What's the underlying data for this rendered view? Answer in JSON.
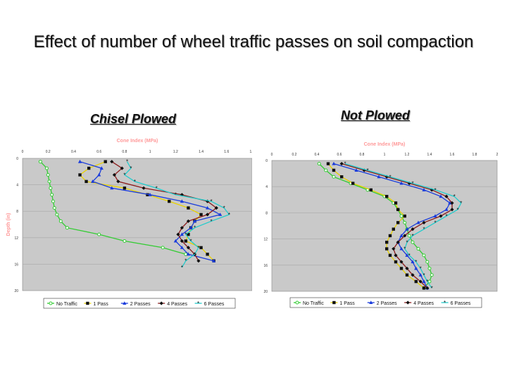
{
  "title": "Effect of number of wheel traffic passes on soil compaction",
  "subtitles": {
    "left": "Chisel Plowed",
    "right": "Not Plowed"
  },
  "chart_data": [
    {
      "type": "line",
      "x_label": "Cone Index (MPa)",
      "y_label": "Depth (in)",
      "xlim": [
        0,
        1.8
      ],
      "ylim": [
        0,
        20
      ],
      "y_inverted": true,
      "x_ticks": [
        "0",
        "0.2",
        "0.4",
        "0.6",
        "0.8",
        "1",
        "1.2",
        "1.4",
        "1.6",
        "1.8"
      ],
      "y_ticks": [
        "0",
        "4",
        "8",
        "12",
        "16",
        "20"
      ],
      "grid": true,
      "legend_position": "bottom",
      "series": [
        {
          "name": "No Traffic",
          "color": "#33cc33",
          "marker": "circle-open",
          "x": [
            0.14,
            0.19,
            0.2,
            0.21,
            0.22,
            0.23,
            0.24,
            0.25,
            0.27,
            0.3,
            0.35,
            0.6,
            0.8,
            1.1,
            1.28
          ],
          "y": [
            0.5,
            1.5,
            2.5,
            3.5,
            4.5,
            5.5,
            6.5,
            7.5,
            8.5,
            9.5,
            10.5,
            11.5,
            12.5,
            13.5,
            14.5
          ]
        },
        {
          "name": "1 Pass",
          "color": "#e8d200",
          "marker": "square",
          "x": [
            0.65,
            0.52,
            0.45,
            0.5,
            0.8,
            0.98,
            1.15,
            1.3,
            1.4,
            1.35,
            1.32,
            1.3,
            1.28,
            1.4,
            1.45,
            1.5
          ],
          "y": [
            0.5,
            1.5,
            2.5,
            3.5,
            4.5,
            5.5,
            6.5,
            7.5,
            8.5,
            9.5,
            10.5,
            11.5,
            12.5,
            13.5,
            14.5,
            15.5
          ]
        },
        {
          "name": "2 Passes",
          "color": "#1a3cdc",
          "marker": "triangle",
          "x": [
            0.45,
            0.62,
            0.6,
            0.55,
            0.7,
            1.0,
            1.25,
            1.45,
            1.55,
            1.35,
            1.32,
            1.25,
            1.2,
            1.25,
            1.3,
            1.5
          ],
          "y": [
            0.5,
            1.5,
            2.5,
            3.5,
            4.5,
            5.5,
            6.5,
            7.5,
            8.5,
            9.5,
            10.5,
            11.5,
            12.5,
            13.5,
            14.5,
            15.5
          ]
        },
        {
          "name": "4 Passes",
          "color": "#8b1a1a",
          "marker": "diamond",
          "x": [
            0.7,
            0.78,
            0.72,
            0.75,
            0.95,
            1.25,
            1.45,
            1.52,
            1.45,
            1.3,
            1.25,
            1.22,
            1.25,
            1.3,
            1.35,
            1.38
          ],
          "y": [
            0.5,
            1.5,
            2.5,
            3.5,
            4.5,
            5.5,
            6.5,
            7.5,
            8.5,
            9.5,
            10.5,
            11.5,
            12.5,
            13.5,
            14.5,
            15.5
          ]
        },
        {
          "name": "6 Passes",
          "color": "#22cccc",
          "marker": "star",
          "x": [
            0.82,
            0.85,
            0.8,
            0.88,
            1.05,
            1.2,
            1.48,
            1.58,
            1.62,
            1.48,
            1.35,
            1.28,
            1.32,
            1.38,
            1.35,
            1.28,
            1.25
          ],
          "y": [
            0.5,
            1.5,
            2.5,
            3.5,
            4.5,
            5.5,
            6.5,
            7.5,
            8.5,
            9.5,
            10.5,
            11.5,
            12.5,
            13.5,
            14.5,
            15.5,
            16.5
          ]
        }
      ]
    },
    {
      "type": "line",
      "x_label": "Cone Index (MPa)",
      "xlim": [
        0,
        2
      ],
      "ylim": [
        0,
        20
      ],
      "y_inverted": true,
      "x_ticks": [
        "0",
        "0.2",
        "0.4",
        "0.6",
        "0.8",
        "1",
        "1.2",
        "1.4",
        "1.6",
        "1.8",
        "2"
      ],
      "y_ticks": [
        "0",
        "4",
        "8",
        "12",
        "16",
        "20"
      ],
      "grid": true,
      "legend_position": "bottom",
      "series": [
        {
          "name": "No Traffic",
          "color": "#33cc33",
          "marker": "circle-open",
          "x": [
            0.42,
            0.48,
            0.55,
            0.7,
            0.85,
            1.0,
            1.08,
            1.12,
            1.15,
            1.18,
            1.2,
            1.22,
            1.25,
            1.3,
            1.35,
            1.38,
            1.4,
            1.42,
            1.4,
            1.35
          ],
          "y": [
            0.5,
            1.5,
            2.5,
            3.5,
            4.5,
            5.5,
            6.5,
            7.5,
            8.5,
            9.5,
            10.5,
            11.5,
            12.5,
            13.5,
            14.5,
            15.5,
            16.5,
            17.5,
            18.5,
            19.5
          ]
        },
        {
          "name": "1 Pass",
          "color": "#e8d200",
          "marker": "square",
          "x": [
            0.5,
            0.55,
            0.62,
            0.72,
            0.88,
            1.02,
            1.1,
            1.12,
            1.18,
            1.12,
            1.08,
            1.05,
            1.02,
            1.02,
            1.05,
            1.1,
            1.15,
            1.2,
            1.28,
            1.35
          ],
          "y": [
            0.5,
            1.5,
            2.5,
            3.5,
            4.5,
            5.5,
            6.5,
            7.5,
            8.5,
            9.5,
            10.5,
            11.5,
            12.5,
            13.5,
            14.5,
            15.5,
            16.5,
            17.5,
            18.5,
            19.5
          ]
        },
        {
          "name": "2 Passes",
          "color": "#1a3cdc",
          "marker": "triangle",
          "x": [
            0.55,
            0.75,
            0.95,
            1.15,
            1.35,
            1.5,
            1.58,
            1.55,
            1.45,
            1.3,
            1.2,
            1.15,
            1.12,
            1.15,
            1.2,
            1.25,
            1.28,
            1.32,
            1.35,
            1.38
          ],
          "y": [
            0.5,
            1.5,
            2.5,
            3.5,
            4.5,
            5.5,
            6.5,
            7.5,
            8.5,
            9.5,
            10.5,
            11.5,
            12.5,
            13.5,
            14.5,
            15.5,
            16.5,
            17.5,
            18.5,
            19.5
          ]
        },
        {
          "name": "4 Passes",
          "color": "#8b1a1a",
          "marker": "diamond",
          "x": [
            0.62,
            0.82,
            1.02,
            1.22,
            1.42,
            1.55,
            1.6,
            1.6,
            1.5,
            1.35,
            1.25,
            1.18,
            1.12,
            1.08,
            1.1,
            1.15,
            1.2,
            1.25,
            1.32,
            1.38
          ],
          "y": [
            0.5,
            1.5,
            2.5,
            3.5,
            4.5,
            5.5,
            6.5,
            7.5,
            8.5,
            9.5,
            10.5,
            11.5,
            12.5,
            13.5,
            14.5,
            15.5,
            16.5,
            17.5,
            18.5,
            19.5
          ]
        },
        {
          "name": "6 Passes",
          "color": "#22cccc",
          "marker": "star",
          "x": [
            0.65,
            0.85,
            1.05,
            1.25,
            1.45,
            1.62,
            1.68,
            1.65,
            1.55,
            1.45,
            1.35,
            1.25,
            1.2,
            1.18,
            1.22,
            1.28,
            1.32,
            1.35,
            1.38,
            1.42
          ],
          "y": [
            0.5,
            1.5,
            2.5,
            3.5,
            4.5,
            5.5,
            6.5,
            7.5,
            8.5,
            9.5,
            10.5,
            11.5,
            12.5,
            13.5,
            14.5,
            15.5,
            16.5,
            17.5,
            18.5,
            19.5
          ]
        }
      ]
    }
  ]
}
